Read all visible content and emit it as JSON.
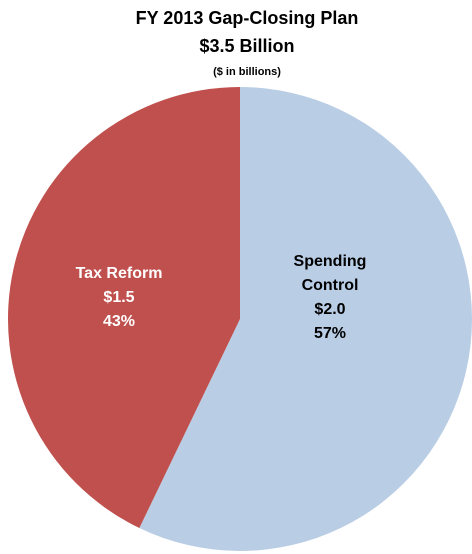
{
  "chart_data": {
    "type": "pie",
    "title": "FY 2013 Gap-Closing Plan",
    "subtitle": "$3.5 Billion",
    "note": "($ in billions)",
    "slices": [
      {
        "name_lines": [
          "Spending",
          "Control"
        ],
        "value": 2.0,
        "value_label": "$2.0",
        "percent": 57,
        "percent_label": "57%",
        "color": "#b9cde5",
        "text_color": "#000000"
      },
      {
        "name_lines": [
          "Tax Reform"
        ],
        "value": 1.5,
        "value_label": "$1.5",
        "percent": 43,
        "percent_label": "43%",
        "color": "#c0504d",
        "text_color": "#ffffff"
      }
    ],
    "start_angle_deg": 0,
    "direction": "clockwise",
    "legend": "none"
  }
}
